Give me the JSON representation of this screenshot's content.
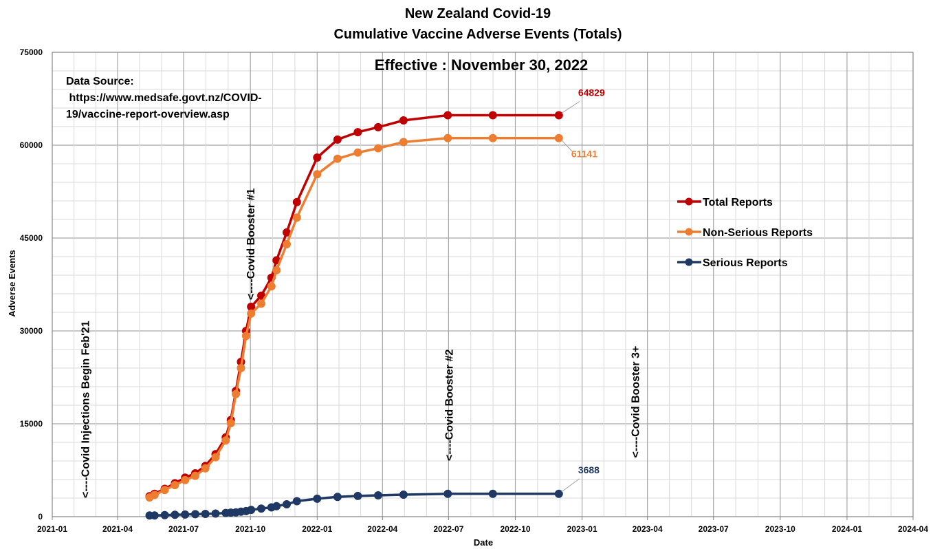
{
  "chart_data": {
    "type": "line",
    "title": "New Zealand Covid-19",
    "subtitle": "Cumulative Vaccine Adverse Events (Totals)",
    "effective_label": "Effective : November 30, 2022",
    "source_lines": [
      "Data Source:",
      " https://www.medsafe.govt.nz/COVID-",
      "19/vaccine-report-overview.asp"
    ],
    "xlabel": "Date",
    "ylabel": "Adverse Events",
    "xlim": [
      "2021-01-01",
      "2024-04-01"
    ],
    "ylim": [
      0,
      75000
    ],
    "x_ticks": [
      "2021-01",
      "2021-04",
      "2021-07",
      "2021-10",
      "2022-01",
      "2022-04",
      "2022-07",
      "2022-10",
      "2023-01",
      "2023-04",
      "2023-07",
      "2023-10",
      "2024-01",
      "2024-04"
    ],
    "y_ticks": [
      "0",
      "15000",
      "30000",
      "45000",
      "60000",
      "75000"
    ],
    "y_tick_values": [
      0,
      15000,
      30000,
      45000,
      60000,
      75000
    ],
    "grid": true,
    "legend_position": "right",
    "x": [
      "2021-05-15",
      "2021-05-22",
      "2021-06-05",
      "2021-06-19",
      "2021-07-03",
      "2021-07-17",
      "2021-07-31",
      "2021-08-14",
      "2021-08-28",
      "2021-09-04",
      "2021-09-11",
      "2021-09-18",
      "2021-09-25",
      "2021-10-02",
      "2021-10-16",
      "2021-10-30",
      "2021-11-06",
      "2021-11-20",
      "2021-12-04",
      "2022-01-01",
      "2022-01-29",
      "2022-02-26",
      "2022-03-26",
      "2022-04-30",
      "2022-06-30",
      "2022-08-31",
      "2022-11-30"
    ],
    "series": [
      {
        "name": "Total Reports",
        "color": "#c00000",
        "values": [
          3300,
          3700,
          4500,
          5400,
          6300,
          7000,
          8200,
          10100,
          12800,
          15600,
          20300,
          25000,
          30000,
          33900,
          35700,
          38600,
          41400,
          45900,
          50800,
          58000,
          60900,
          62100,
          62900,
          64000,
          64829,
          64829,
          64829
        ]
      },
      {
        "name": "Non-Serious Reports",
        "color": "#ed7d31",
        "values": [
          3100,
          3500,
          4300,
          5100,
          5900,
          6600,
          7800,
          9600,
          12300,
          15100,
          19800,
          24000,
          29200,
          32800,
          34400,
          37200,
          39800,
          44000,
          48300,
          55300,
          57800,
          58800,
          59500,
          60500,
          61141,
          61141,
          61141
        ]
      },
      {
        "name": "Serious Reports",
        "color": "#1f3864",
        "values": [
          200,
          200,
          250,
          300,
          350,
          400,
          450,
          500,
          600,
          650,
          700,
          800,
          900,
          1100,
          1300,
          1500,
          1700,
          2000,
          2500,
          2900,
          3200,
          3350,
          3450,
          3550,
          3688,
          3688,
          3688
        ]
      }
    ],
    "end_labels": [
      "64829",
      "61141",
      "3688"
    ],
    "annotations": [
      {
        "text": "<----Covid Injections Begin Feb'21",
        "date": "2021-02-15",
        "y": 3000
      },
      {
        "text": "<----Covid Booster #1",
        "date": "2021-10-01",
        "y": 35000
      },
      {
        "text": "<----Covid Booster #2",
        "date": "2022-07-01",
        "y": 9000
      },
      {
        "text": "<----Covid Booster 3+",
        "date": "2023-03-15",
        "y": 9500
      }
    ]
  }
}
